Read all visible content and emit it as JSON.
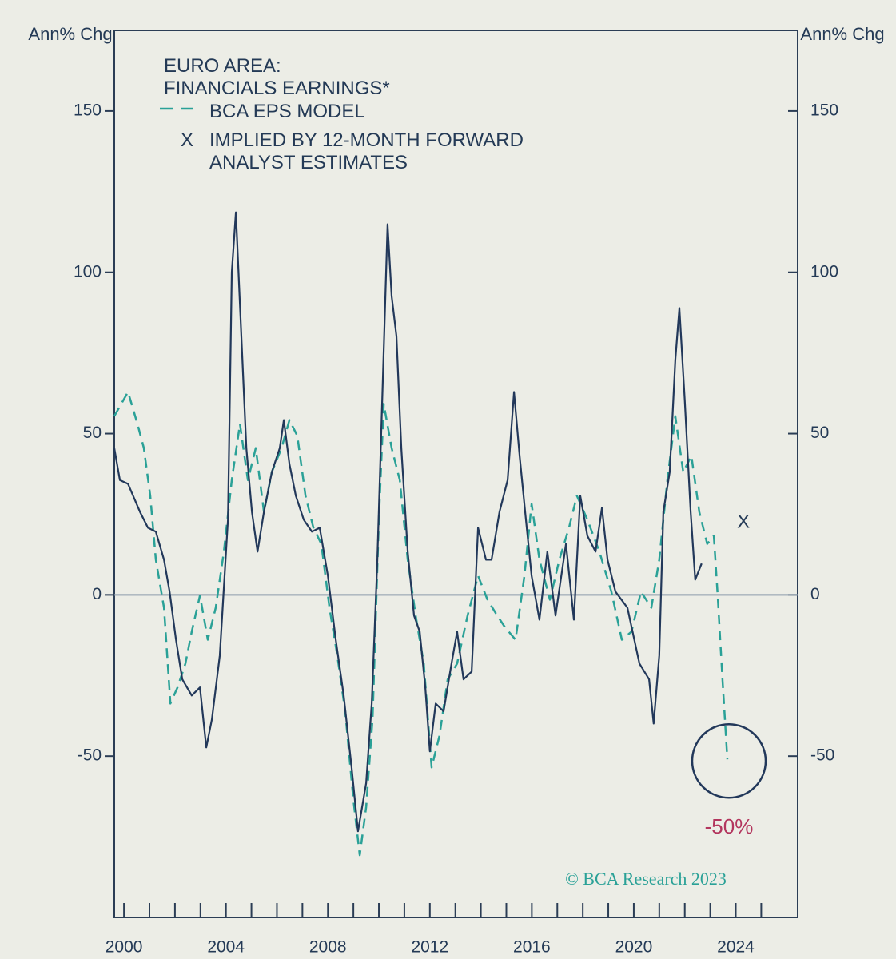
{
  "chart_data": {
    "type": "line",
    "title": "EURO AREA:",
    "y_label": "Ann% Chg",
    "y2_label": "Ann% Chg",
    "xlim": [
      1999.62,
      2026.43
    ],
    "ylim": [
      -100,
      175
    ],
    "y2lim": [
      -100,
      175
    ],
    "xticks": [
      2000,
      2004,
      2008,
      2012,
      2016,
      2020,
      2024
    ],
    "xminor_ticks": [
      2001,
      2002,
      2003,
      2005,
      2006,
      2007,
      2009,
      2010,
      2011,
      2013,
      2014,
      2015,
      2017,
      2018,
      2019,
      2021,
      2022,
      2023,
      2025
    ],
    "yticks": [
      -50,
      0,
      50,
      100,
      150
    ],
    "y2ticks": [
      -50,
      0,
      50,
      100,
      150
    ],
    "hline": 0,
    "series": [
      {
        "name": "FINANCIALS EARNINGS*",
        "color": "#22385a",
        "dash": false,
        "x": [
          1999.62,
          1999.84,
          2000.16,
          2000.63,
          2000.94,
          2001.25,
          2001.57,
          2001.79,
          2002.04,
          2002.29,
          2002.66,
          2002.98,
          2003.23,
          2003.45,
          2003.76,
          2004.08,
          2004.23,
          2004.39,
          2004.55,
          2004.8,
          2005.02,
          2005.24,
          2005.49,
          2005.8,
          2006.11,
          2006.27,
          2006.49,
          2006.74,
          2007.05,
          2007.37,
          2007.68,
          2008.0,
          2008.31,
          2008.62,
          2008.93,
          2009.18,
          2009.5,
          2009.72,
          2009.94,
          2010.13,
          2010.34,
          2010.5,
          2010.69,
          2010.88,
          2011.13,
          2011.38,
          2011.6,
          2011.82,
          2012.0,
          2012.23,
          2012.54,
          2012.85,
          2013.07,
          2013.32,
          2013.64,
          2013.89,
          2014.2,
          2014.42,
          2014.73,
          2015.05,
          2015.3,
          2015.52,
          2015.77,
          2015.99,
          2016.3,
          2016.61,
          2016.93,
          2017.34,
          2017.65,
          2017.9,
          2018.18,
          2018.5,
          2018.75,
          2018.97,
          2019.28,
          2019.75,
          2020.22,
          2020.6,
          2020.78,
          2021.0,
          2021.16,
          2021.41,
          2021.63,
          2021.79,
          2022.0,
          2022.23,
          2022.41,
          2022.66
        ],
        "values": [
          45.5,
          35.6,
          34.4,
          25.7,
          20.8,
          19.6,
          10.9,
          1,
          -13.9,
          -26.2,
          -31.2,
          -28.7,
          -47.3,
          -38.6,
          -18.8,
          23.3,
          100,
          118.6,
          90,
          45.5,
          25.7,
          13.4,
          25.7,
          38.1,
          45.5,
          54.2,
          40.6,
          30.7,
          23.3,
          19.6,
          20.8,
          5.9,
          -13.9,
          -31.2,
          -53.5,
          -73.3,
          -58.4,
          -33.7,
          10.9,
          60.4,
          114.9,
          92.6,
          80.2,
          45.5,
          13.4,
          -6.4,
          -11.4,
          -28.7,
          -48.5,
          -33.7,
          -36.1,
          -21.3,
          -11.4,
          -26.2,
          -23.8,
          20.8,
          10.9,
          10.9,
          25.7,
          35.6,
          62.9,
          43.1,
          23.3,
          5.9,
          -7.7,
          13.4,
          -6.4,
          15.8,
          -7.7,
          30.7,
          18.3,
          13.4,
          27,
          10.9,
          1,
          -4,
          -21.3,
          -26.2,
          -39.9,
          -18.8,
          25.7,
          38.1,
          72.8,
          88.9,
          60.4,
          25.7,
          4.7,
          9.7
        ]
      },
      {
        "name": "BCA EPS MODEL",
        "color": "#2aa197",
        "dash": true,
        "x": [
          1999.62,
          2000.16,
          2000.53,
          2000.78,
          2001.03,
          2001.25,
          2001.57,
          2001.82,
          2002.1,
          2002.41,
          2002.66,
          2002.98,
          2003.29,
          2003.6,
          2003.92,
          2004.23,
          2004.55,
          2004.86,
          2005.17,
          2005.49,
          2005.8,
          2006.18,
          2006.49,
          2006.8,
          2007.12,
          2007.43,
          2007.74,
          2008.06,
          2008.37,
          2008.68,
          2009.0,
          2009.25,
          2009.5,
          2009.75,
          2010.0,
          2010.19,
          2010.5,
          2010.82,
          2011.13,
          2011.44,
          2011.76,
          2012.07,
          2012.38,
          2012.7,
          2013.07,
          2013.48,
          2013.89,
          2014.26,
          2014.64,
          2014.95,
          2015.36,
          2015.71,
          2015.99,
          2016.3,
          2016.71,
          2017.08,
          2017.46,
          2017.77,
          2018.18,
          2018.65,
          2019.12,
          2019.53,
          2019.91,
          2020.28,
          2020.69,
          2021.0,
          2021.32,
          2021.63,
          2021.94,
          2022.26,
          2022.57,
          2022.88,
          2023.14,
          2023.29,
          2023.48,
          2023.67
        ],
        "values": [
          55.4,
          62.9,
          53,
          45.5,
          30.7,
          10.9,
          -4,
          -33.7,
          -28.7,
          -21.3,
          -11.4,
          -0.2,
          -13.9,
          -4,
          13.4,
          35.6,
          53,
          35.6,
          45.5,
          25.7,
          38.1,
          45.5,
          54.2,
          49.3,
          30.7,
          20.8,
          15.8,
          -4,
          -18.8,
          -36.1,
          -63.4,
          -80.7,
          -65.8,
          -38.6,
          23.3,
          59.2,
          45.5,
          35.6,
          10.9,
          -6.4,
          -21.3,
          -53.5,
          -43.6,
          -26.2,
          -21.3,
          -6.4,
          5.9,
          -1.5,
          -6.4,
          -10.1,
          -13.9,
          5.9,
          28.2,
          10.9,
          -1.5,
          10.9,
          20.8,
          30.7,
          23.3,
          13.4,
          1,
          -13.9,
          -11.4,
          1,
          -4,
          10.9,
          35.6,
          55.4,
          38.1,
          43.1,
          25.7,
          15.8,
          18.3,
          -0.2,
          -26.2,
          -51
        ]
      }
    ],
    "forward_estimate": {
      "name": "IMPLIED BY 12-MONTH FORWARD ANALYST ESTIMATES",
      "marker": "X",
      "x": 2024.3,
      "y": 22.3
    },
    "annotation": {
      "text": "-50%",
      "color": "#b3365e"
    },
    "source": "© BCA Research 2023",
    "source_color": "#2aa197"
  }
}
